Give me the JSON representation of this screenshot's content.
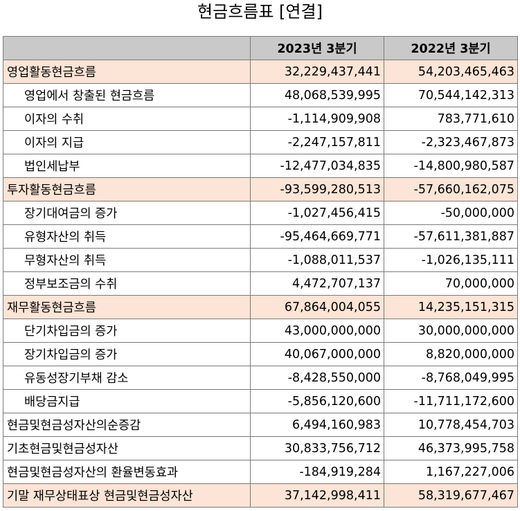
{
  "title": "현금흐름표 [연결]",
  "columns": [
    "2023년 3분기",
    "2022년 3분기"
  ],
  "rows": [
    {
      "label": "영업활동현금흐름",
      "v2023": "32,229,437,441",
      "v2022": "54,203,465,463",
      "type": "section"
    },
    {
      "label": "영업에서 창출된 현금흐름",
      "v2023": "48,068,539,995",
      "v2022": "70,544,142,313",
      "type": "sub"
    },
    {
      "label": "이자의 수취",
      "v2023": "-1,114,909,908",
      "v2022": "783,771,610",
      "type": "sub"
    },
    {
      "label": "이자의 지급",
      "v2023": "-2,247,157,811",
      "v2022": "-2,323,467,873",
      "type": "sub"
    },
    {
      "label": "법인세납부",
      "v2023": "-12,477,034,835",
      "v2022": "-14,800,980,587",
      "type": "sub"
    },
    {
      "label": "투자활동현금흐름",
      "v2023": "-93,599,280,513",
      "v2022": "-57,660,162,075",
      "type": "section"
    },
    {
      "label": "장기대여금의 증가",
      "v2023": "-1,027,456,415",
      "v2022": "-50,000,000",
      "type": "sub"
    },
    {
      "label": "유형자산의 취득",
      "v2023": "-95,464,669,771",
      "v2022": "-57,611,381,887",
      "type": "sub"
    },
    {
      "label": "무형자산의 취득",
      "v2023": "-1,088,011,537",
      "v2022": "-1,026,135,111",
      "type": "sub"
    },
    {
      "label": "정부보조금의 수취",
      "v2023": "4,472,707,137",
      "v2022": "70,000,000",
      "type": "sub"
    },
    {
      "label": "재무활동현금흐름",
      "v2023": "67,864,004,055",
      "v2022": "14,235,151,315",
      "type": "section"
    },
    {
      "label": "단기차입금의 증가",
      "v2023": "43,000,000,000",
      "v2022": "30,000,000,000",
      "type": "sub"
    },
    {
      "label": "장기차입금의 증가",
      "v2023": "40,067,000,000",
      "v2022": "8,820,000,000",
      "type": "sub"
    },
    {
      "label": "유동성장기부채 감소",
      "v2023": "-8,428,550,000",
      "v2022": "-8,768,049,995",
      "type": "sub"
    },
    {
      "label": "배당금지급",
      "v2023": "-5,856,120,600",
      "v2022": "-11,711,172,600",
      "type": "sub"
    },
    {
      "label": "현금및현금성자산의순증감",
      "v2023": "6,494,160,983",
      "v2022": "10,778,454,703",
      "type": "plain"
    },
    {
      "label": "기초현금및현금성자산",
      "v2023": "30,833,756,712",
      "v2022": "46,373,995,758",
      "type": "plain"
    },
    {
      "label": "현금및현금성자산의 환율변동효과",
      "v2023": "-184,919,284",
      "v2022": "1,167,227,006",
      "type": "plain"
    },
    {
      "label": "기말 재무상태표상 현금및현금성자산",
      "v2023": "37,142,998,411",
      "v2022": "58,319,677,467",
      "type": "section"
    }
  ],
  "colors": {
    "section_bg": "#fce4d6",
    "header_bg": "#c9c9c9",
    "border": "#7a7a7a"
  }
}
